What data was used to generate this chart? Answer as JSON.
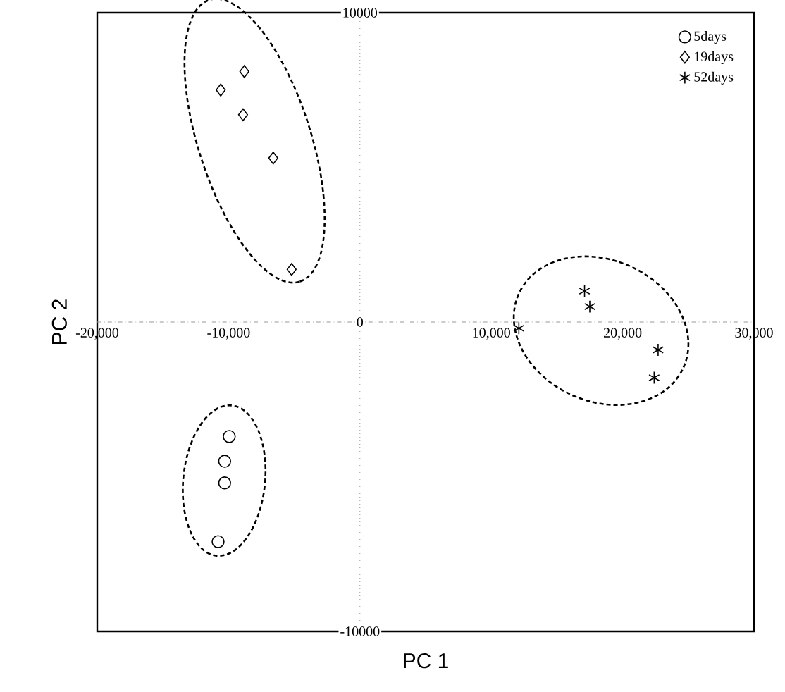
{
  "chart_data": {
    "type": "scatter",
    "xlabel": "PC 1",
    "ylabel": "PC 2",
    "legend": "top right",
    "xlim": [
      -20000,
      30000
    ],
    "ylim": [
      -10000,
      10000
    ],
    "xticks": [
      {
        "value": -20000,
        "label": "-20,000"
      },
      {
        "value": -10000,
        "label": "-10,000"
      },
      {
        "value": 10000,
        "label": "10,000"
      },
      {
        "value": 20000,
        "label": "20,000"
      },
      {
        "value": 30000,
        "label": "30,000"
      }
    ],
    "yticks": [
      {
        "value": -10000,
        "label": "-10000"
      },
      0,
      10000
    ],
    "ref_lines": [
      {
        "axis": "x",
        "value": 0,
        "line_style": "dotted",
        "color": "#999999"
      },
      {
        "axis": "y",
        "value": 0,
        "line_style": "dashed",
        "color": "#999999"
      }
    ],
    "series": [
      {
        "name": "5days",
        "color": "#000000",
        "marker": "circle",
        "x": [
          -9950,
          -10300,
          -10300,
          -10800
        ],
        "values": [
          -3700,
          -4500,
          -5200,
          -7100
        ]
      },
      {
        "name": "19days",
        "color": "#000000",
        "marker": "diamond",
        "x": [
          -8800,
          -10600,
          -8900,
          -6600,
          -5200
        ],
        "values": [
          8100,
          7500,
          6700,
          5300,
          1700
        ]
      },
      {
        "name": "52days",
        "color": "#000000",
        "marker": "cross",
        "x": [
          12100,
          17100,
          17500,
          22700,
          22400
        ],
        "values": [
          -200,
          1000,
          500,
          -900,
          -1800
        ]
      }
    ]
  }
}
